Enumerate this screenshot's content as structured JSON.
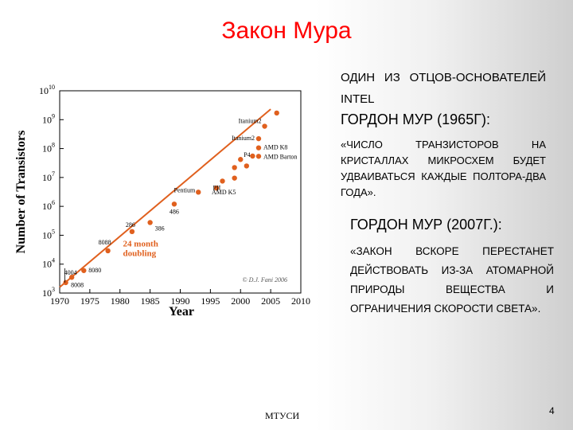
{
  "slide": {
    "title": "Закон Мура",
    "bullet1": "Один из отцов-основателей Intel",
    "bullet2": "Гордон Мур (1965г):",
    "bullet3": "«Число транзисторов на кристаллах микросхем будет удваиваться каждые полтора-два года».",
    "bullet4": "Гордон Мур (2007г.):",
    "bullet5": "«Закон вскоре перестанет действовать из-за атомарной природы вещества и ограничения скорости света».",
    "footer": "МТУСИ",
    "page_number": "4"
  },
  "colors": {
    "title": "#ff0000",
    "series": "#e0601e",
    "trend": "#e0601e",
    "text": "#000000"
  },
  "chart_data": {
    "type": "scatter",
    "title": "",
    "xlabel": "Year",
    "ylabel": "Number of Transistors",
    "xlim": [
      1970,
      2010
    ],
    "ylim_log10": [
      3,
      10
    ],
    "y_scale": "log",
    "x_ticks": [
      "1970",
      "1975",
      "1980",
      "1985",
      "1990",
      "1995",
      "2000",
      "2005",
      "2010"
    ],
    "y_tick_exponents": [
      "3",
      "4",
      "5",
      "6",
      "7",
      "8",
      "9",
      "10"
    ],
    "y_tick_base": "10",
    "grid": false,
    "points": [
      {
        "x": 1971,
        "y": 2300,
        "label": "4004"
      },
      {
        "x": 1972,
        "y": 3500,
        "label": "8008"
      },
      {
        "x": 1974,
        "y": 6000,
        "label": "8080"
      },
      {
        "x": 1978,
        "y": 29000,
        "label": "8088"
      },
      {
        "x": 1982,
        "y": 134000,
        "label": "286"
      },
      {
        "x": 1985,
        "y": 275000,
        "label": "386"
      },
      {
        "x": 1989,
        "y": 1200000,
        "label": "486"
      },
      {
        "x": 1993,
        "y": 3100000,
        "label": "Pentium"
      },
      {
        "x": 1996,
        "y": 4300000,
        "label": "AMD K5"
      },
      {
        "x": 1997,
        "y": 7500000,
        "label": "PII"
      },
      {
        "x": 1999,
        "y": 9500000,
        "label": ""
      },
      {
        "x": 1999,
        "y": 22000000,
        "label": ""
      },
      {
        "x": 2000,
        "y": 42000000,
        "label": "P4"
      },
      {
        "x": 2001,
        "y": 25000000,
        "label": ""
      },
      {
        "x": 2002,
        "y": 55000000,
        "label": ""
      },
      {
        "x": 2003,
        "y": 54000000,
        "label": "AMD Barton"
      },
      {
        "x": 2003,
        "y": 106000000,
        "label": "AMD K8"
      },
      {
        "x": 2003,
        "y": 220000000,
        "label": "Itanium2"
      },
      {
        "x": 2004,
        "y": 592000000,
        "label": "Itanium2"
      },
      {
        "x": 2006,
        "y": 1700000000,
        "label": ""
      }
    ],
    "trend": {
      "label": "24 month doubling",
      "x": [
        1970,
        2005
      ],
      "y": [
        1600,
        2300000000
      ]
    },
    "annotation": "© D.J. Fani 2006"
  }
}
